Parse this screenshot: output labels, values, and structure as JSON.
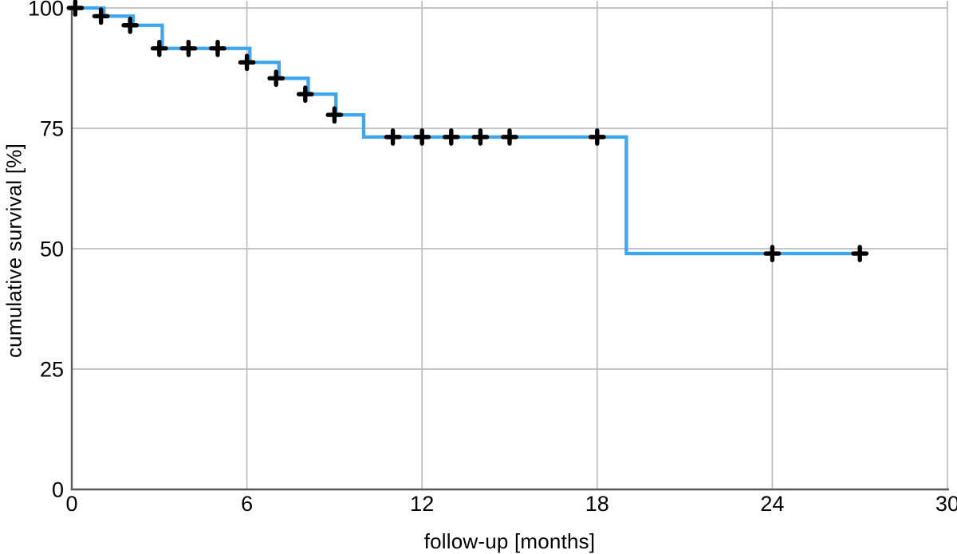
{
  "chart_data": {
    "type": "line",
    "subtype": "kaplan-meier-step",
    "title": "",
    "xlabel": "follow-up [months]",
    "ylabel": "cumulative survival [%]",
    "xlim": [
      0,
      30
    ],
    "ylim": [
      0,
      100
    ],
    "xticks": [
      0,
      6,
      12,
      18,
      24,
      30
    ],
    "yticks": [
      0,
      25,
      50,
      75,
      100
    ],
    "grid": true,
    "legend": false,
    "series": [
      {
        "name": "cumulative survival",
        "color": "#3ba6f2",
        "step": "hv",
        "points": [
          [
            0,
            100
          ],
          [
            1.1,
            98.3
          ],
          [
            2.1,
            96.4
          ],
          [
            3.1,
            91.6
          ],
          [
            6.1,
            88.7
          ],
          [
            7.1,
            85.4
          ],
          [
            8.1,
            82.1
          ],
          [
            9.05,
            77.8
          ],
          [
            10,
            73.2
          ],
          [
            19,
            49.0
          ]
        ],
        "end_x": 27.1
      }
    ],
    "censor_markers": {
      "symbol": "plus-icon",
      "color": "#000000",
      "points": [
        [
          0.12,
          100
        ],
        [
          1.0,
          98.3
        ],
        [
          2.0,
          96.4
        ],
        [
          3.0,
          91.6
        ],
        [
          4.0,
          91.6
        ],
        [
          5.0,
          91.6
        ],
        [
          6.0,
          88.7
        ],
        [
          7.0,
          85.4
        ],
        [
          8.0,
          82.1
        ],
        [
          9.0,
          77.8
        ],
        [
          11.0,
          73.2
        ],
        [
          12.0,
          73.2
        ],
        [
          13.0,
          73.2
        ],
        [
          14.0,
          73.2
        ],
        [
          15.0,
          73.2
        ],
        [
          18.0,
          73.2
        ],
        [
          24.0,
          49.0
        ],
        [
          27.0,
          49.0
        ]
      ]
    },
    "colors": {
      "grid": "#bdbdbd",
      "axis": "#595959",
      "text": "#000000",
      "background": "#ffffff"
    }
  }
}
